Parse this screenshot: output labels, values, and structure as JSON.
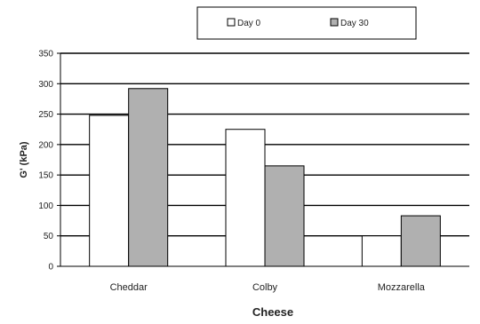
{
  "chart_data": {
    "type": "bar",
    "categories": [
      "Cheddar",
      "Colby",
      "Mozzarella"
    ],
    "series": [
      {
        "name": "Day 0",
        "values": [
          248,
          225,
          50
        ],
        "color": "#ffffff"
      },
      {
        "name": "Day 30",
        "values": [
          292,
          165,
          83
        ],
        "color": "#b0b0b0"
      }
    ],
    "xlabel": "Cheese",
    "ylabel": "G' (kPa)",
    "ylim": [
      0,
      350
    ],
    "yticks": [
      0,
      50,
      100,
      150,
      200,
      250,
      300,
      350
    ],
    "grid": true,
    "legend": "top-center"
  }
}
